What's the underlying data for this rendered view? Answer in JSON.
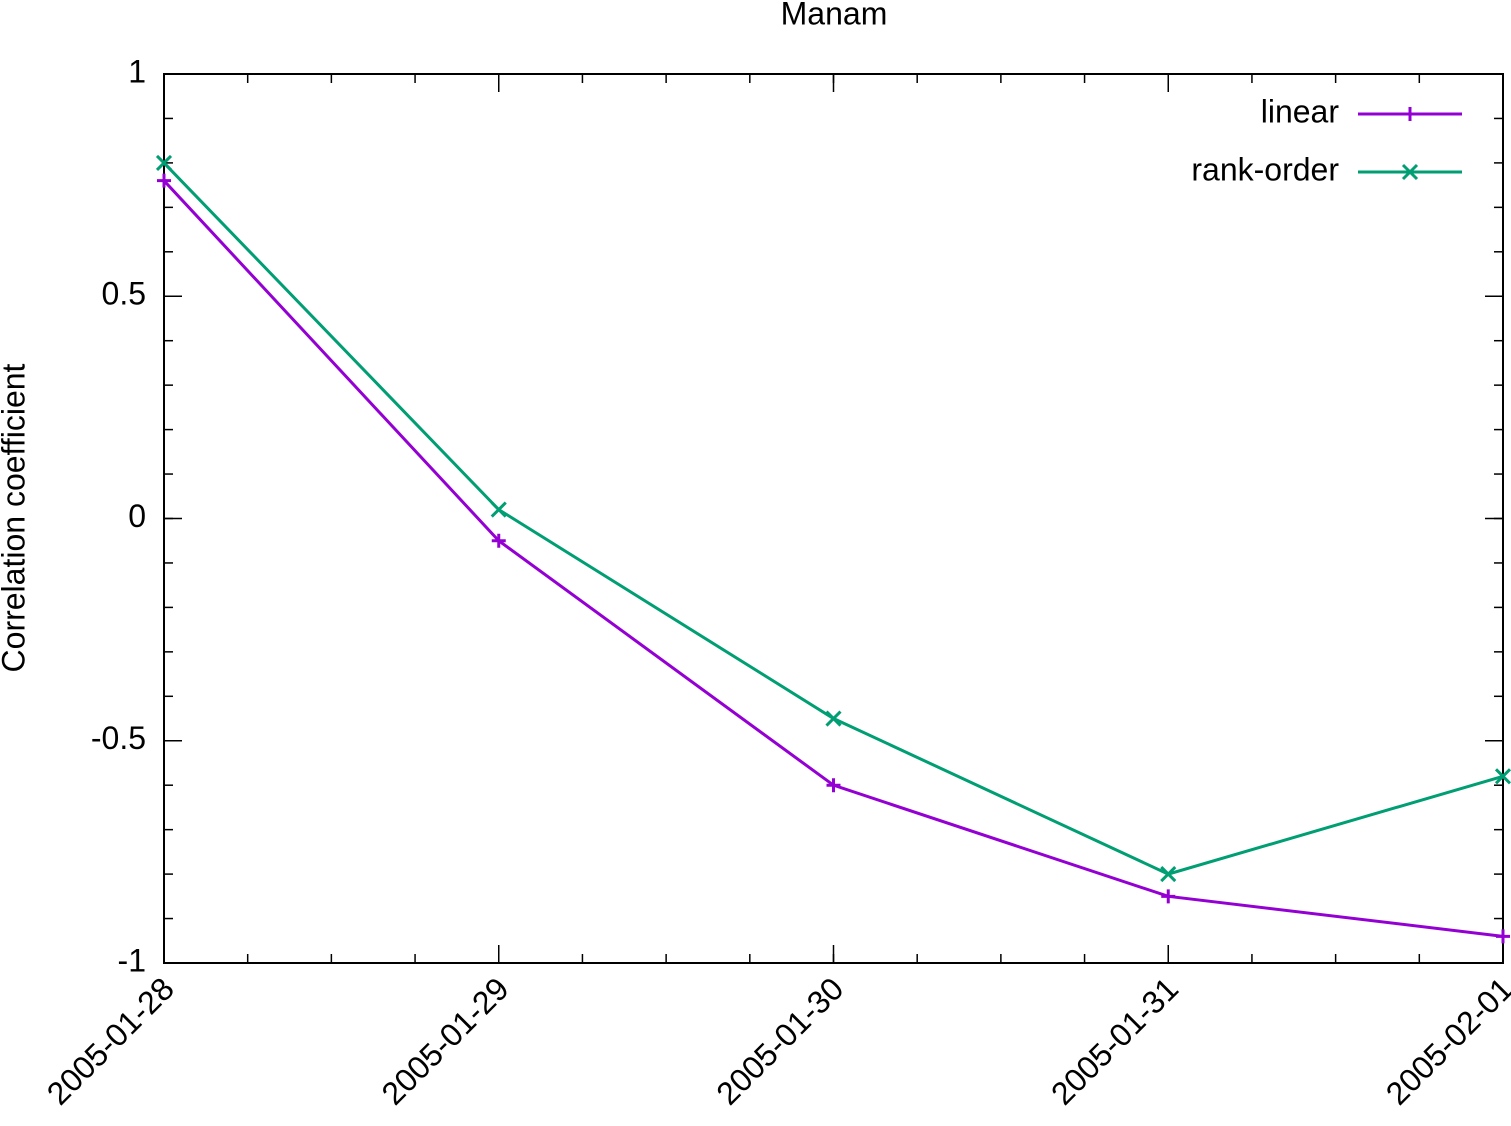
{
  "chart_data": {
    "type": "line",
    "title": "Manam",
    "y_label": "Correlation coefficient",
    "categories": [
      "2005-01-28",
      "2005-01-29",
      "2005-01-30",
      "2005-01-31",
      "2005-02-01"
    ],
    "series": [
      {
        "name": "linear",
        "color": "#9400d3",
        "marker": "plus",
        "values": [
          0.76,
          -0.05,
          -0.6,
          -0.85,
          -0.94
        ]
      },
      {
        "name": "rank-order",
        "color": "#009e73",
        "marker": "cross",
        "values": [
          0.8,
          0.02,
          -0.45,
          -0.8,
          -0.58
        ]
      }
    ],
    "ylim": [
      -1,
      1
    ],
    "yticks": [
      -1,
      -0.5,
      0,
      0.5,
      1
    ],
    "legend": "top-right"
  }
}
